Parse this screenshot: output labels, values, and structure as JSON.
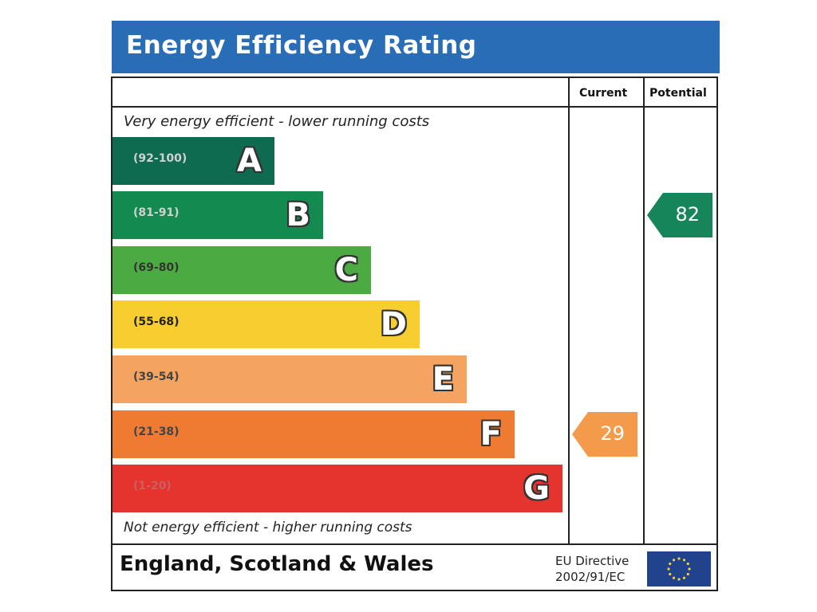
{
  "title": "Energy Efficiency Rating",
  "columns": {
    "current": "Current",
    "potential": "Potential"
  },
  "captions": {
    "top": "Very energy efficient - lower running costs",
    "bottom": "Not energy efficient - higher running costs"
  },
  "chart_data": {
    "type": "bar",
    "title": "Energy Efficiency Rating",
    "categories": [
      "A",
      "B",
      "C",
      "D",
      "E",
      "F",
      "G"
    ],
    "ranges": [
      "(92-100)",
      "(81-91)",
      "(69-80)",
      "(55-68)",
      "(39-54)",
      "(21-38)",
      "(1-20)"
    ],
    "colors": [
      "#0f6b4f",
      "#138a50",
      "#4caa42",
      "#f7cd2f",
      "#f4a360",
      "#ef7a32",
      "#e5332d"
    ],
    "range_text_colors": [
      "#d0d0d0",
      "#d0d0d0",
      "#333333",
      "#222222",
      "#444444",
      "#444444",
      "#c86060"
    ],
    "current": {
      "value": 29,
      "band": "F",
      "color": "#f39b4a"
    },
    "potential": {
      "value": 82,
      "band": "B",
      "color": "#16855a"
    }
  },
  "footer": {
    "region": "England, Scotland & Wales",
    "directive_line1": "EU Directive",
    "directive_line2": "2002/91/EC",
    "flag_colors": {
      "field": "#21428c",
      "stars": "#f2d033"
    }
  }
}
